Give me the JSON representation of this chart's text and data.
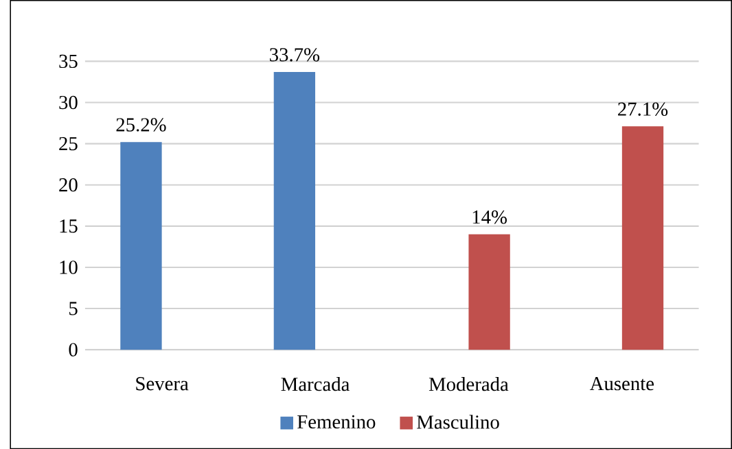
{
  "chart_data": {
    "type": "bar",
    "categories": [
      "Severa",
      "Marcada",
      "Moderada",
      "Ausente"
    ],
    "series": [
      {
        "name": "Femenino",
        "color": "#4f81bd",
        "values": [
          25.2,
          33.7,
          0,
          0
        ],
        "value_labels": [
          "25.2%",
          "33.7%",
          null,
          null
        ]
      },
      {
        "name": "Masculino",
        "color": "#c0504d",
        "values": [
          null,
          null,
          14,
          27.1
        ],
        "value_labels": [
          null,
          null,
          "14%",
          "27.1%"
        ]
      }
    ],
    "ylim": [
      0,
      35
    ],
    "yticks": [
      0,
      5,
      10,
      15,
      20,
      25,
      30,
      35
    ],
    "grid": "y",
    "legend": "bottom"
  }
}
